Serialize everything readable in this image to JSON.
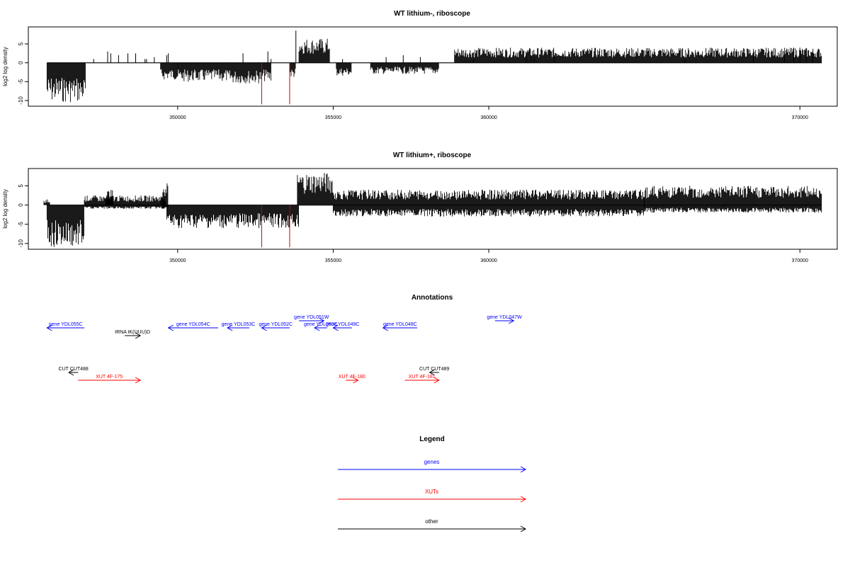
{
  "chart_data": [
    {
      "type": "bar",
      "title": "WT lithium-, riboscope",
      "ylabel": "log2 log density",
      "xlim": [
        345200,
        371200
      ],
      "ylim": [
        -11.5,
        9.5
      ],
      "xticks": [
        350000,
        355000,
        360000,
        370000
      ],
      "xtick_labels": [
        "350000",
        "355000",
        "360000",
        "370000"
      ],
      "yticks": [
        -10,
        -5,
        0,
        5
      ],
      "ytick_labels": [
        "-10",
        "-5",
        "0",
        "5"
      ],
      "segments": [
        {
          "start": 345800,
          "end": 347050,
          "min": -10.5,
          "max": 0
        },
        {
          "start": 349450,
          "end": 350000,
          "min": -4.5,
          "max": 0
        },
        {
          "start": 350000,
          "end": 351600,
          "min": -5,
          "max": 0
        },
        {
          "start": 351600,
          "end": 352700,
          "min": -5.5,
          "max": 0
        },
        {
          "start": 352700,
          "end": 353000,
          "min": -5,
          "max": 0
        },
        {
          "start": 353600,
          "end": 353800,
          "min": -4,
          "max": 0
        },
        {
          "start": 353900,
          "end": 354900,
          "min": 0,
          "max": 6.5
        },
        {
          "start": 355100,
          "end": 355600,
          "min": -3.5,
          "max": 0
        },
        {
          "start": 356200,
          "end": 358400,
          "min": -3,
          "max": 0
        },
        {
          "start": 358900,
          "end": 370700,
          "min": 0,
          "max": 4
        }
      ],
      "sparse_lines": [
        {
          "x": 347300,
          "y": 1
        },
        {
          "x": 347750,
          "y": 3
        },
        {
          "x": 347850,
          "y": 2.5
        },
        {
          "x": 348100,
          "y": 2
        },
        {
          "x": 348400,
          "y": 2.5
        },
        {
          "x": 348650,
          "y": 2.5
        },
        {
          "x": 348950,
          "y": 1
        },
        {
          "x": 349000,
          "y": 1
        },
        {
          "x": 349250,
          "y": 1.5
        },
        {
          "x": 349650,
          "y": 2
        },
        {
          "x": 349700,
          "y": 2.5
        },
        {
          "x": 352100,
          "y": 2.5
        },
        {
          "x": 352900,
          "y": 3
        },
        {
          "x": 353000,
          "y": 1
        },
        {
          "x": 353800,
          "y": 8.5
        },
        {
          "x": 355300,
          "y": 1
        },
        {
          "x": 356700,
          "y": 1.5
        },
        {
          "x": 357250,
          "y": 2
        },
        {
          "x": 357800,
          "y": 1.5
        },
        {
          "x": 359500,
          "y": 1
        },
        {
          "x": 361200,
          "y": 3
        },
        {
          "x": 361350,
          "y": 2
        },
        {
          "x": 361450,
          "y": 1.5
        },
        {
          "x": 362100,
          "y": 2
        },
        {
          "x": 366300,
          "y": 1
        },
        {
          "x": 368500,
          "y": 2
        },
        {
          "x": 369500,
          "y": 3
        },
        {
          "x": 369800,
          "y": 4
        },
        {
          "x": 370000,
          "y": 4
        },
        {
          "x": 370200,
          "y": 3
        },
        {
          "x": 370400,
          "y": 2.5
        }
      ],
      "red_lines": [
        {
          "x": 352700,
          "y": -11
        },
        {
          "x": 353600,
          "y": -11
        }
      ]
    },
    {
      "type": "bar",
      "title": "WT lithium+, riboscope",
      "ylabel": "log2 log density",
      "xlim": [
        345200,
        371200
      ],
      "ylim": [
        -11.5,
        9.5
      ],
      "xticks": [
        350000,
        355000,
        360000,
        370000
      ],
      "xtick_labels": [
        "350000",
        "355000",
        "360000",
        "370000"
      ],
      "yticks": [
        -10,
        -5,
        0,
        5
      ],
      "ytick_labels": [
        "-10",
        "-5",
        "0",
        "5"
      ],
      "segments": [
        {
          "start": 345700,
          "end": 345900,
          "min": 0,
          "max": 1.5
        },
        {
          "start": 345800,
          "end": 347000,
          "min": -11,
          "max": 0
        },
        {
          "start": 347000,
          "end": 349600,
          "min": -1,
          "max": 2.5
        },
        {
          "start": 347700,
          "end": 347950,
          "min": 0,
          "max": 4
        },
        {
          "start": 349500,
          "end": 349700,
          "min": -1,
          "max": 6
        },
        {
          "start": 349650,
          "end": 353900,
          "min": -6,
          "max": 0
        },
        {
          "start": 353850,
          "end": 355000,
          "min": 0,
          "max": 8.5
        },
        {
          "start": 355000,
          "end": 365000,
          "min": -3,
          "max": 4
        },
        {
          "start": 365000,
          "end": 370700,
          "min": -2,
          "max": 5
        }
      ],
      "sparse_lines": [
        {
          "x": 349450,
          "y": 1
        }
      ],
      "red_lines": [
        {
          "x": 352700,
          "y": -11
        },
        {
          "x": 353600,
          "y": -11
        }
      ]
    }
  ],
  "annotations": {
    "title": "Annotations",
    "genes": [
      {
        "label": "gene YDL055C",
        "start": 345800,
        "end": 347000,
        "dir": "left",
        "row": 1
      },
      {
        "label": "gene YDL054C",
        "start": 349700,
        "end": 351300,
        "dir": "left",
        "row": 1
      },
      {
        "label": "gene YDL053C",
        "start": 351600,
        "end": 352300,
        "dir": "left",
        "row": 1
      },
      {
        "label": "gene YDL052C",
        "start": 352700,
        "end": 353600,
        "dir": "left",
        "row": 1
      },
      {
        "label": "gene YDL051W",
        "start": 353900,
        "end": 354700,
        "dir": "right",
        "row": 0
      },
      {
        "label": "gene YDL050C",
        "start": 354400,
        "end": 354800,
        "dir": "left",
        "row": 1
      },
      {
        "label": "gene YDL049C",
        "start": 355000,
        "end": 355600,
        "dir": "left",
        "row": 1
      },
      {
        "label": "gene YDL048C",
        "start": 356600,
        "end": 357700,
        "dir": "left",
        "row": 1
      },
      {
        "label": "gene YDL047W",
        "start": 360200,
        "end": 360800,
        "dir": "right",
        "row": 0
      }
    ],
    "others": [
      {
        "label": "tRNA tK(UUU)D",
        "start": 348300,
        "end": 348800,
        "dir": "right",
        "row": 2
      },
      {
        "label": "CUT CUT488",
        "start": 346500,
        "end": 346800,
        "dir": "left",
        "row": 3
      },
      {
        "label": "CUT CUT489",
        "start": 358100,
        "end": 358400,
        "dir": "left",
        "row": 3
      }
    ],
    "xuts": [
      {
        "label": "XUT 4F-175",
        "start": 346800,
        "end": 348800,
        "dir": "right",
        "row": 4
      },
      {
        "label": "XUT 4F-180",
        "start": 355400,
        "end": 355800,
        "dir": "right",
        "row": 4
      },
      {
        "label": "XUT 4F-181",
        "start": 357300,
        "end": 358400,
        "dir": "right",
        "row": 4
      }
    ]
  },
  "legend": {
    "title": "Legend",
    "items": [
      {
        "label": "genes",
        "color": "#0000ff"
      },
      {
        "label": "XUTs",
        "color": "#ff0000"
      },
      {
        "label": "other",
        "color": "#000000"
      }
    ]
  },
  "colors": {
    "gene": "#0000ff",
    "xut": "#ff0000",
    "other": "#000000",
    "signal": "#000000",
    "marker": "#cc0000"
  }
}
